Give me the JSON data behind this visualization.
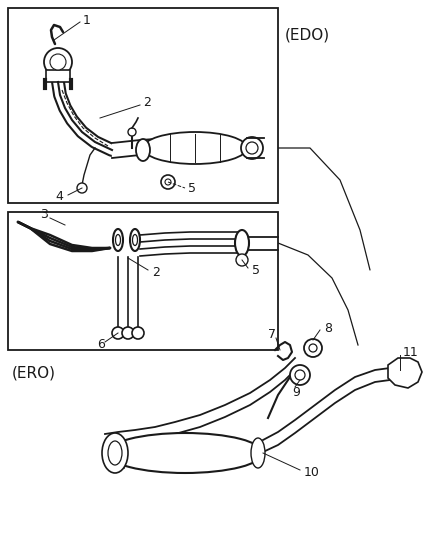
{
  "bg_color": "#ffffff",
  "line_color": "#1a1a1a",
  "box1_label": "(EDO)",
  "box2_label": "(ERO)",
  "figsize": [
    4.38,
    5.33
  ],
  "dpi": 100
}
